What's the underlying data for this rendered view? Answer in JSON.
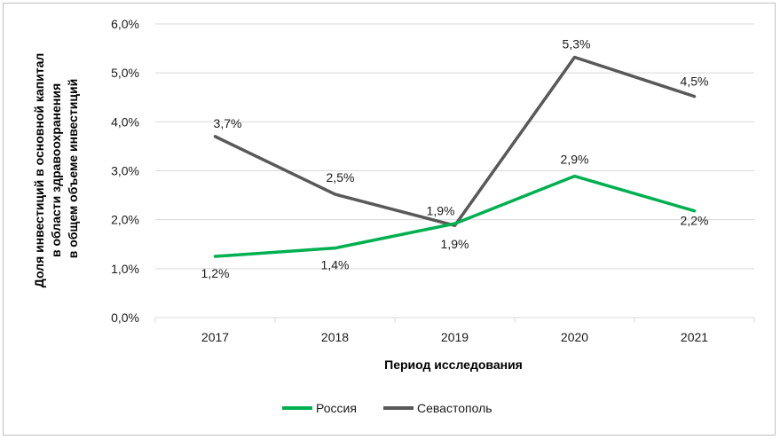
{
  "chart_data": {
    "type": "line",
    "x": [
      "2017",
      "2018",
      "2019",
      "2020",
      "2021"
    ],
    "series": [
      {
        "name": "Россия",
        "color": "#00b050",
        "values": [
          1.25,
          1.42,
          1.92,
          2.89,
          2.18
        ],
        "labels": [
          "1,2%",
          "1,4%",
          "1,9%",
          "2,9%",
          "2,2%"
        ]
      },
      {
        "name": "Севастополь",
        "color": "#595959",
        "values": [
          3.7,
          2.52,
          1.88,
          5.32,
          4.52
        ],
        "labels": [
          "3,7%",
          "2,5%",
          "1,9%",
          "5,3%",
          "4,5%"
        ]
      }
    ],
    "yticks": [
      "0,0%",
      "1,0%",
      "2,0%",
      "3,0%",
      "4,0%",
      "5,0%",
      "6,0%"
    ],
    "ylim": [
      0,
      6
    ],
    "xlabel": "Период исследования",
    "ylabel": [
      "Доля инвестиций в основной капитал",
      "в области здравоохранения",
      "в общем объеме инвестиций"
    ],
    "grid": "horizontal",
    "legend": "bottom"
  }
}
